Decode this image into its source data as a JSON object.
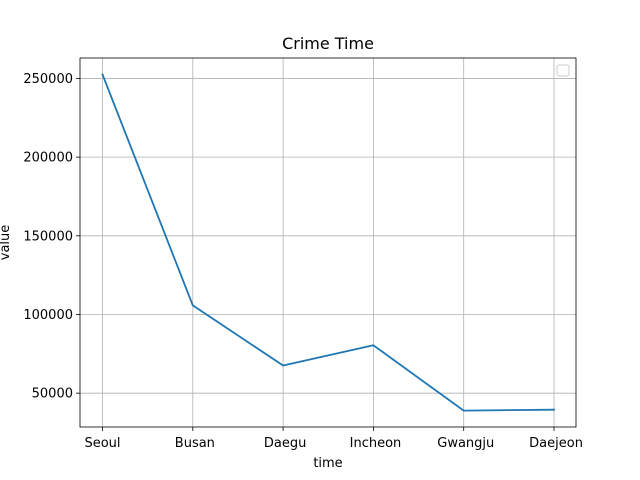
{
  "chart_data": {
    "type": "line",
    "title": "Crime Time",
    "xlabel": "time",
    "ylabel": "value",
    "categories": [
      "Seoul",
      " Busan",
      " Daegu",
      " Incheon",
      " Gwangju",
      " Daejeon"
    ],
    "series": [
      {
        "values": [
          252500,
          105800,
          67600,
          80400,
          38900,
          39500
        ],
        "color": "#1f77b4"
      }
    ],
    "ylim": [
      28500,
      263000
    ],
    "yticks": [
      50000,
      100000,
      150000,
      200000,
      250000
    ],
    "ytick_labels": [
      "50000",
      "100000",
      "150000",
      "200000",
      "250000"
    ],
    "grid": true,
    "legend": {
      "location": "top-right",
      "entries": []
    }
  }
}
